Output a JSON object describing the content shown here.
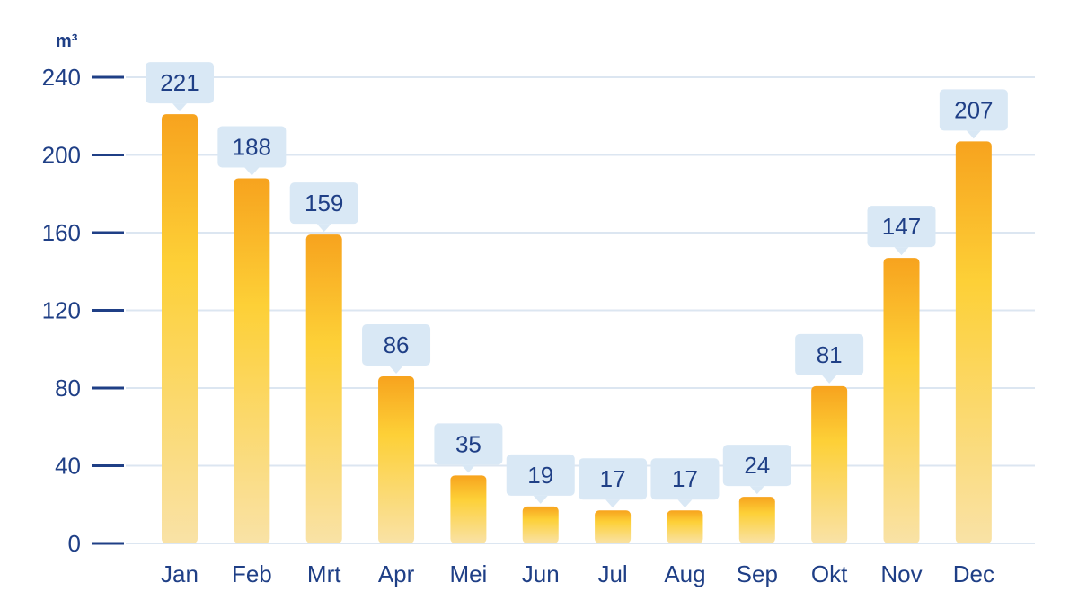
{
  "chart_data": {
    "type": "bar",
    "ylabel": "m³",
    "ylim": [
      0,
      240
    ],
    "yticks": [
      0,
      40,
      80,
      120,
      160,
      200,
      240
    ],
    "grid": true,
    "categories": [
      "Jan",
      "Feb",
      "Mrt",
      "Apr",
      "Mei",
      "Jun",
      "Jul",
      "Aug",
      "Sep",
      "Okt",
      "Nov",
      "Dec"
    ],
    "values": [
      221,
      188,
      159,
      86,
      35,
      19,
      17,
      17,
      24,
      81,
      147,
      207
    ],
    "data_labels": [
      "221",
      "188",
      "159",
      "86",
      "35",
      "19",
      "17",
      "17",
      "24",
      "81",
      "147",
      "207"
    ]
  },
  "colors": {
    "axis_text": "#1f3f86",
    "tick_mark": "#1f3f86",
    "grid": "#dce6f1",
    "bar_top": "#f7a31e",
    "bar_mid": "#fdd037",
    "bar_bottom": "#f9e2a6",
    "label_box": "#d9e8f5"
  }
}
